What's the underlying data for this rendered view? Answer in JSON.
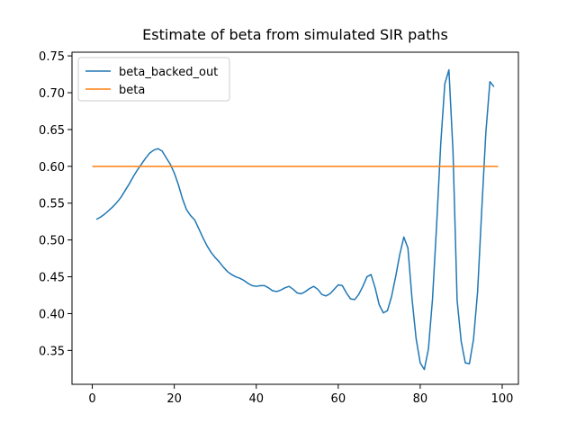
{
  "chart_data": {
    "type": "line",
    "title": "Estimate of beta from simulated SIR paths",
    "series": [
      {
        "name": "beta_backed_out",
        "color": "#1f77b4",
        "x": [
          1,
          2,
          3,
          4,
          5,
          6,
          7,
          8,
          9,
          10,
          11,
          12,
          13,
          14,
          15,
          16,
          17,
          18,
          19,
          20,
          21,
          22,
          23,
          24,
          25,
          26,
          27,
          28,
          29,
          30,
          31,
          32,
          33,
          34,
          35,
          36,
          37,
          38,
          39,
          40,
          41,
          42,
          43,
          44,
          45,
          46,
          47,
          48,
          49,
          50,
          51,
          52,
          53,
          54,
          55,
          56,
          57,
          58,
          59,
          60,
          61,
          62,
          63,
          64,
          65,
          66,
          67,
          68,
          69,
          70,
          71,
          72,
          73,
          74,
          75,
          76,
          77,
          78,
          79,
          80,
          81,
          82,
          83,
          84,
          85,
          86,
          87,
          88,
          89,
          90,
          91,
          92,
          93,
          94,
          95,
          96,
          97,
          98
        ],
        "values": [
          0.528,
          0.531,
          0.535,
          0.54,
          0.545,
          0.551,
          0.558,
          0.567,
          0.576,
          0.586,
          0.595,
          0.603,
          0.611,
          0.618,
          0.622,
          0.624,
          0.621,
          0.612,
          0.603,
          0.591,
          0.575,
          0.556,
          0.541,
          0.533,
          0.527,
          0.515,
          0.503,
          0.492,
          0.483,
          0.476,
          0.47,
          0.463,
          0.457,
          0.453,
          0.45,
          0.448,
          0.445,
          0.441,
          0.438,
          0.437,
          0.438,
          0.438,
          0.435,
          0.431,
          0.43,
          0.432,
          0.435,
          0.437,
          0.433,
          0.428,
          0.427,
          0.43,
          0.434,
          0.437,
          0.433,
          0.426,
          0.424,
          0.427,
          0.433,
          0.439,
          0.438,
          0.428,
          0.42,
          0.419,
          0.426,
          0.437,
          0.45,
          0.453,
          0.435,
          0.412,
          0.401,
          0.404,
          0.423,
          0.45,
          0.48,
          0.504,
          0.489,
          0.42,
          0.366,
          0.333,
          0.324,
          0.352,
          0.42,
          0.52,
          0.63,
          0.712,
          0.731,
          0.62,
          0.418,
          0.362,
          0.333,
          0.332,
          0.365,
          0.43,
          0.54,
          0.645,
          0.715,
          0.708
        ]
      },
      {
        "name": "beta",
        "color": "#ff7f0e",
        "x": [
          0,
          99
        ],
        "values": [
          0.6,
          0.6
        ]
      }
    ],
    "xlim": [
      -4.95,
      103.95
    ],
    "ylim": [
      0.304,
      0.755
    ],
    "xticks": [
      0,
      20,
      40,
      60,
      80,
      100
    ],
    "yticks": [
      {
        "value": 0.35,
        "label": "0.35"
      },
      {
        "value": 0.4,
        "label": "0.40"
      },
      {
        "value": 0.45,
        "label": "0.45"
      },
      {
        "value": 0.5,
        "label": "0.50"
      },
      {
        "value": 0.55,
        "label": "0.55"
      },
      {
        "value": 0.6,
        "label": "0.60"
      },
      {
        "value": 0.65,
        "label": "0.65"
      },
      {
        "value": 0.7,
        "label": "0.70"
      },
      {
        "value": 0.75,
        "label": "0.75"
      }
    ],
    "grid": false,
    "legend": "upper left"
  }
}
